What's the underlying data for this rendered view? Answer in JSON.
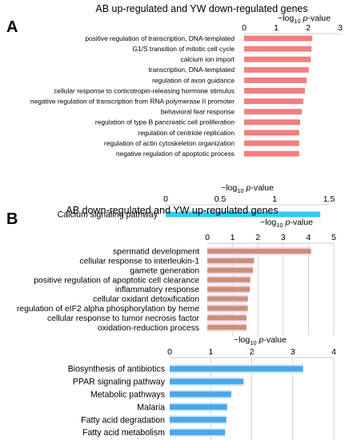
{
  "chart_data": [
    {
      "panel": "A",
      "type": "bar",
      "orientation": "horizontal",
      "title": "AB up-regulated and YW down-regulated genes",
      "xlabel_prefix": "−log",
      "xlabel_sub": "10",
      "xlabel_italic": "p",
      "xlabel_suffix": "-value",
      "xlim": [
        0,
        3
      ],
      "xticks": [
        "0",
        "1",
        "2",
        "3"
      ],
      "color": "#f08080",
      "grid": false,
      "categories": [
        "positive regulation of transcription, DNA-templated",
        "G1/S transition of mitotic cell cycle",
        "calcium ion import",
        "transcription, DNA-templated",
        "regulation of axon guidance",
        "cellular response to corticotropin-releasing hormone stimulus",
        "negative regulation of transcription from RNA polymerase II promoter",
        "behavioral fear response",
        "regulation of type B pancreatic cell proliferation",
        "regulation of centriole replication",
        "regulation of actin cytoskeleton organization",
        "negative regulation of apoptotic process"
      ],
      "values": [
        2.13,
        2.1,
        2.08,
        2.02,
        1.95,
        1.9,
        1.85,
        1.8,
        1.75,
        1.72,
        1.72,
        1.72
      ]
    },
    {
      "panel": "A2",
      "type": "bar",
      "orientation": "horizontal",
      "xlabel_prefix": "−log",
      "xlabel_sub": "10",
      "xlabel_italic": "p",
      "xlabel_suffix": "-value",
      "xlim": [
        0,
        1.5
      ],
      "xticks": [
        "0",
        "0.5",
        "1",
        "1.5"
      ],
      "color": "#33ccee",
      "grid": false,
      "categories": [
        "Calcium signaling pathway"
      ],
      "values": [
        1.42
      ]
    },
    {
      "panel": "B",
      "type": "bar",
      "orientation": "horizontal",
      "title": "AB down-regulated and YW up-regulated genes",
      "xlabel_prefix": "−log",
      "xlabel_sub": "10",
      "xlabel_italic": "p",
      "xlabel_suffix": "-value",
      "xlim": [
        0,
        5
      ],
      "xticks": [
        "0",
        "1",
        "2",
        "3",
        "4",
        "5"
      ],
      "color": "#c8907a",
      "grid": true,
      "categories": [
        "spermatid development",
        "cellular response to interleukin-1",
        "gamete generation",
        "positive regulation of apoptotic cell clearance",
        "inflammatory response",
        "cellular oxidant detoxification",
        "regulation of eIF2 alpha phosphorylation by heme",
        "cellular response to tumor necrosis factor",
        "oxidation-reduction process"
      ],
      "values": [
        4.1,
        1.85,
        1.8,
        1.7,
        1.68,
        1.6,
        1.6,
        1.55,
        1.55
      ]
    },
    {
      "panel": "B2",
      "type": "bar",
      "orientation": "horizontal",
      "xlabel_prefix": "−log",
      "xlabel_sub": "10",
      "xlabel_italic": "p",
      "xlabel_suffix": "-value",
      "xlim": [
        0,
        4
      ],
      "xticks": [
        "0",
        "1",
        "2",
        "3",
        "4"
      ],
      "color": "#4aa8e8",
      "grid": true,
      "categories": [
        "Biosynthesis of antibiotics",
        "PPAR signaling pathway",
        "Metabolic pathways",
        "Malaria",
        "Fatty acid degradation",
        "Fatty acid metabolism"
      ],
      "values": [
        3.25,
        1.8,
        1.5,
        1.4,
        1.38,
        1.35
      ]
    }
  ],
  "panel_letters": {
    "a": "A",
    "b": "B"
  }
}
